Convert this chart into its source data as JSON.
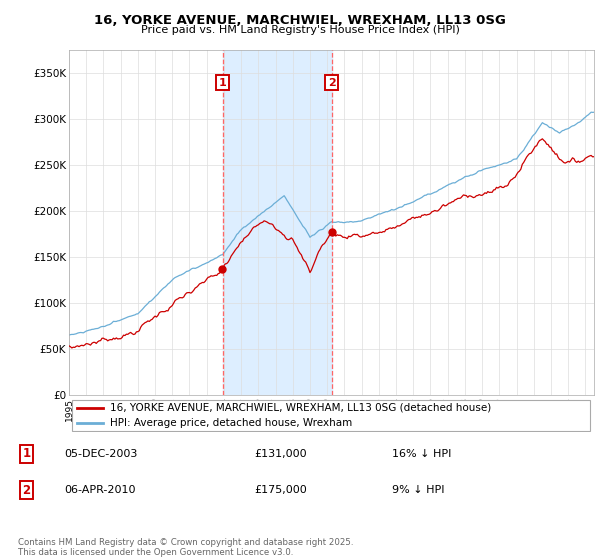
{
  "title_line1": "16, YORKE AVENUE, MARCHWIEL, WREXHAM, LL13 0SG",
  "title_line2": "Price paid vs. HM Land Registry's House Price Index (HPI)",
  "ylim": [
    0,
    375000
  ],
  "yticks": [
    0,
    50000,
    100000,
    150000,
    200000,
    250000,
    300000,
    350000
  ],
  "ytick_labels": [
    "£0",
    "£50K",
    "£100K",
    "£150K",
    "£200K",
    "£250K",
    "£300K",
    "£350K"
  ],
  "xlim_start": 1995.0,
  "xlim_end": 2025.5,
  "hpi_color": "#6baed6",
  "price_color": "#cc0000",
  "shaded_color": "#ddeeff",
  "dashed_line_color": "#ff6666",
  "marker1_year": 2003.92,
  "marker2_year": 2010.27,
  "sale1_price_val": 131000,
  "sale2_price_val": 175000,
  "sale1_date": "05-DEC-2003",
  "sale1_price": "£131,000",
  "sale1_note": "16% ↓ HPI",
  "sale2_date": "06-APR-2010",
  "sale2_price": "£175,000",
  "sale2_note": "9% ↓ HPI",
  "legend_label1": "16, YORKE AVENUE, MARCHWIEL, WREXHAM, LL13 0SG (detached house)",
  "legend_label2": "HPI: Average price, detached house, Wrexham",
  "footer": "Contains HM Land Registry data © Crown copyright and database right 2025.\nThis data is licensed under the Open Government Licence v3.0."
}
